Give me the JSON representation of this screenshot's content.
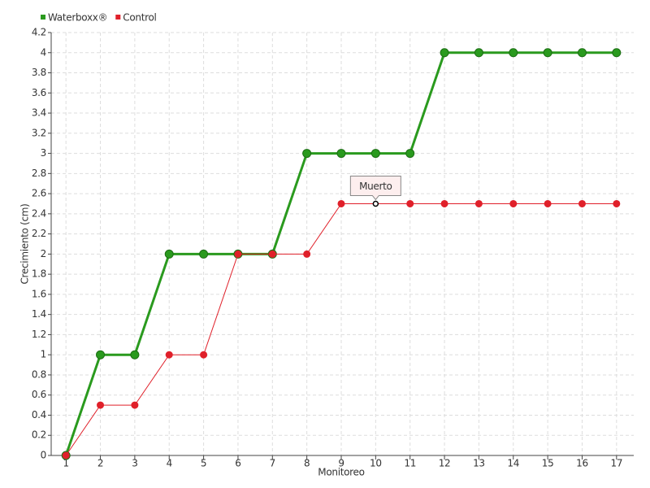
{
  "chart_data": {
    "type": "line",
    "x_label": "Monitoreo",
    "y_label": "Crecimiento (cm)",
    "categories": [
      "1",
      "2",
      "3",
      "4",
      "5",
      "6",
      "7",
      "8",
      "9",
      "10",
      "11",
      "12",
      "13",
      "14",
      "15",
      "16",
      "17"
    ],
    "series": [
      {
        "name": "Waterboxx®",
        "color": "#2a9a1e",
        "values": [
          0,
          1,
          1,
          2,
          2,
          2,
          2,
          3,
          3,
          3,
          3,
          4,
          4,
          4,
          4,
          4,
          4
        ]
      },
      {
        "name": "Control",
        "color": "#e0202a",
        "values": [
          0,
          0.5,
          0.5,
          1,
          1,
          2,
          2,
          2,
          2.5,
          2.5,
          2.5,
          2.5,
          2.5,
          2.5,
          2.5,
          2.5,
          2.5
        ]
      }
    ],
    "ylim": [
      0,
      4.2
    ],
    "yticks": [
      0,
      0.2,
      0.4,
      0.6,
      0.8,
      1,
      1.2,
      1.4,
      1.6,
      1.8,
      2,
      2.2,
      2.4,
      2.6,
      2.8,
      3,
      3.2,
      3.4,
      3.6,
      3.8,
      4,
      4.2
    ],
    "grid": true,
    "legend": "top-left",
    "annotation": {
      "text": "Muerto",
      "series": "Control",
      "category": "10"
    }
  }
}
